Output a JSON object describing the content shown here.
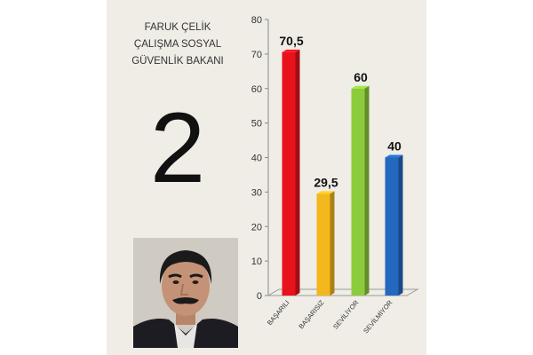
{
  "header": {
    "title_lines": [
      "FARUK ÇELİK",
      "ÇALIŞMA SOSYAL",
      "GÜVENLİK BAKANI"
    ],
    "rank": "2"
  },
  "photo": {
    "icon": "person-portrait-icon"
  },
  "chart_data": {
    "type": "bar",
    "categories": [
      "BAŞARILI",
      "BAŞARISIZ",
      "SEVİLİYOR",
      "SEVİLMİYOR"
    ],
    "values": [
      70.5,
      29.5,
      60,
      40
    ],
    "value_labels": [
      "70,5",
      "29,5",
      "60",
      "40"
    ],
    "colors": [
      "#e8121c",
      "#f2b81e",
      "#8ccc3c",
      "#2468c0"
    ],
    "ylim": [
      0,
      80
    ],
    "yticks": [
      "0",
      "10",
      "20",
      "30",
      "40",
      "50",
      "60",
      "70",
      "80"
    ],
    "grid": false,
    "legend": "none"
  }
}
